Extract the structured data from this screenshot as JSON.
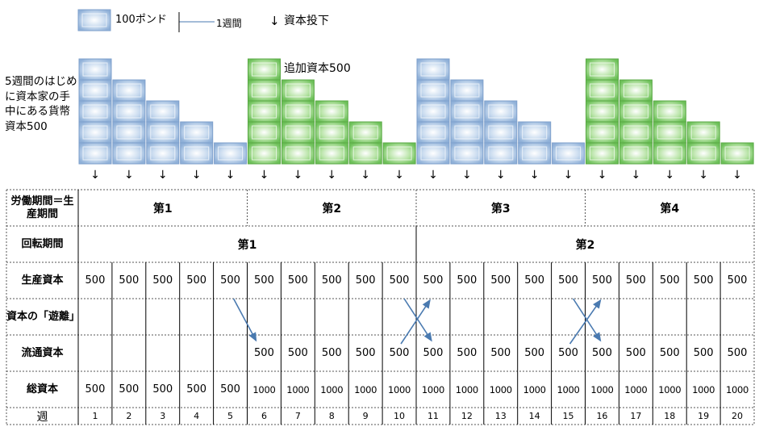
{
  "legend": {
    "block_label": "100ポンド",
    "line_label": "1週間",
    "arrow_symbol": "↓",
    "arrow_label": "資本投下"
  },
  "side_note": "5週間のはじめに資本家の手中にある貨幣資本500",
  "additional_capital_note": "追加資本500",
  "colors": {
    "blue_block": "#a9c6e6",
    "green_block": "#8fd27a",
    "grid_solid": "#000000",
    "grid_dashed": "#555555",
    "cross_arrow": "#4a7ab0"
  },
  "staircases": [
    {
      "color": "blue",
      "start_week": 1,
      "heights": [
        5,
        4,
        3,
        2,
        1
      ]
    },
    {
      "color": "green",
      "start_week": 6,
      "heights": [
        5,
        4,
        3,
        2,
        1
      ]
    },
    {
      "color": "blue",
      "start_week": 11,
      "heights": [
        5,
        4,
        3,
        2,
        1
      ]
    },
    {
      "color": "green",
      "start_week": 16,
      "heights": [
        5,
        4,
        3,
        2,
        1
      ]
    }
  ],
  "table": {
    "labor_period": {
      "label": "労働期間＝生産期間",
      "periods": [
        "第1",
        "第2",
        "第3",
        "第4"
      ]
    },
    "turnover_period": {
      "label": "回転期間",
      "periods": [
        "第1",
        "第2"
      ]
    },
    "production_capital": {
      "label": "生産資本",
      "values": [
        "500",
        "500",
        "500",
        "500",
        "500",
        "500",
        "500",
        "500",
        "500",
        "500",
        "500",
        "500",
        "500",
        "500",
        "500",
        "500",
        "500",
        "500",
        "500",
        "500"
      ]
    },
    "released_capital": {
      "label": "資本の「遊離」"
    },
    "circulating_capital": {
      "label": "流通資本",
      "values": [
        "",
        "",
        "",
        "",
        "",
        "500",
        "500",
        "500",
        "500",
        "500",
        "500",
        "500",
        "500",
        "500",
        "500",
        "500",
        "500",
        "500",
        "500",
        "500"
      ]
    },
    "total_capital": {
      "label": "総資本",
      "values": [
        "500",
        "500",
        "500",
        "500",
        "500",
        "1000",
        "1000",
        "1000",
        "1000",
        "1000",
        "1000",
        "1000",
        "1000",
        "1000",
        "1000",
        "1000",
        "1000",
        "1000",
        "1000",
        "1000"
      ]
    },
    "weeks": {
      "label": "週",
      "values": [
        "1",
        "2",
        "3",
        "4",
        "5",
        "6",
        "7",
        "8",
        "9",
        "10",
        "11",
        "12",
        "13",
        "14",
        "15",
        "16",
        "17",
        "18",
        "19",
        "20"
      ]
    }
  }
}
